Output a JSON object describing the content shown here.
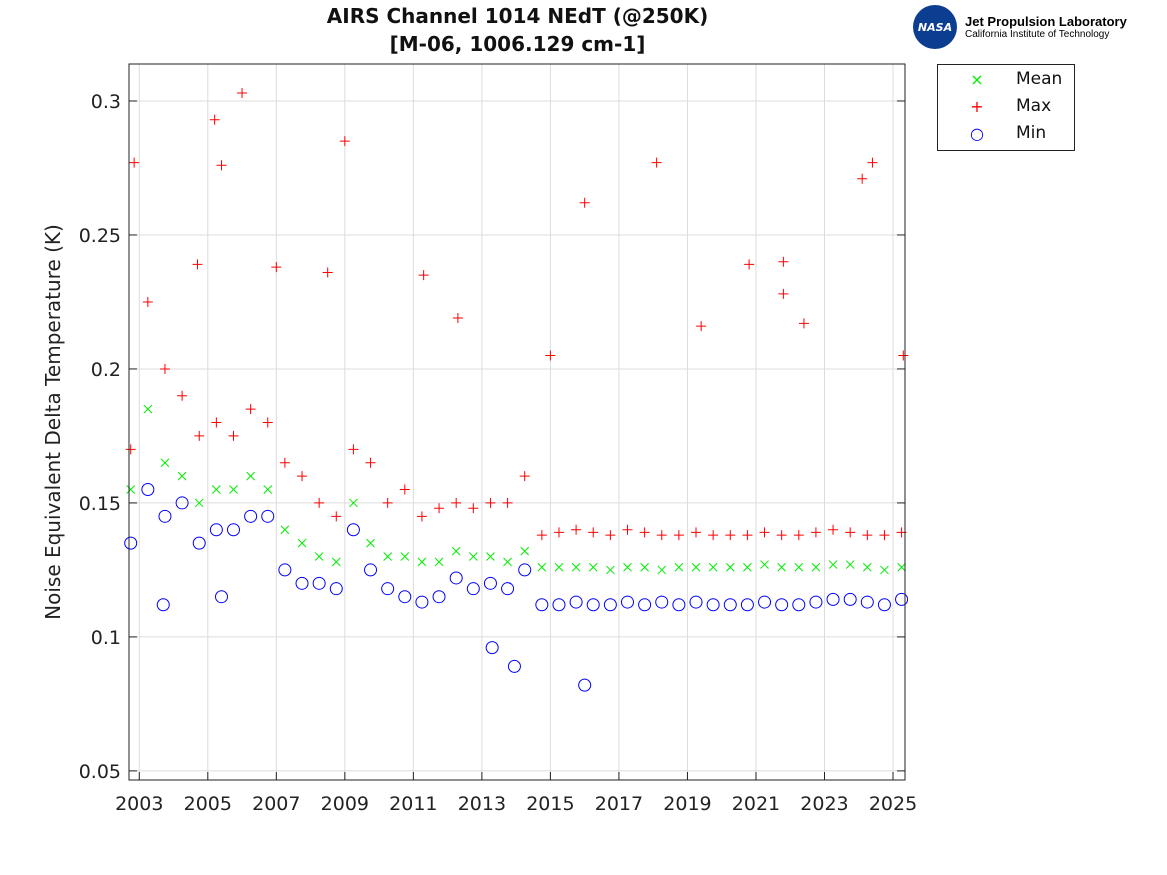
{
  "chart_data": {
    "type": "scatter",
    "title": "AIRS Channel 1014 NEdT (@250K)",
    "subtitle": "[M-06, 1006.129 cm-1]",
    "xlabel": "",
    "ylabel": "Noise Equivalent Delta Temperature (K)",
    "xlim": [
      2002.7,
      2025.35
    ],
    "ylim": [
      0.0466,
      0.3138
    ],
    "xticks": [
      2003,
      2005,
      2007,
      2009,
      2011,
      2013,
      2015,
      2017,
      2019,
      2021,
      2023,
      2025
    ],
    "yticks": [
      0.05,
      0.1,
      0.15,
      0.2,
      0.25,
      0.3
    ],
    "ytick_labels": [
      "0.05",
      "0.1",
      "0.15",
      "0.2",
      "0.25",
      "0.3"
    ],
    "grid": true,
    "legend_placement": "outside-top-right",
    "x": [
      2002.75,
      2003.25,
      2003.75,
      2004.25,
      2004.75,
      2005.25,
      2005.75,
      2006.25,
      2006.75,
      2007.25,
      2007.75,
      2008.25,
      2008.75,
      2009.25,
      2009.75,
      2010.25,
      2010.75,
      2011.25,
      2011.75,
      2012.25,
      2012.75,
      2013.25,
      2013.75,
      2014.25,
      2014.75,
      2015.25,
      2015.75,
      2016.25,
      2016.75,
      2017.25,
      2017.75,
      2018.25,
      2018.75,
      2019.25,
      2019.75,
      2020.25,
      2020.75,
      2021.25,
      2021.75,
      2022.25,
      2022.75,
      2023.25,
      2023.75,
      2024.25,
      2024.75,
      2025.25
    ],
    "series": [
      {
        "name": "Mean",
        "color": "#00ee00",
        "marker": "x",
        "values": [
          0.155,
          0.185,
          0.165,
          0.16,
          0.15,
          0.155,
          0.155,
          0.16,
          0.155,
          0.14,
          0.135,
          0.13,
          0.128,
          0.15,
          0.135,
          0.13,
          0.13,
          0.128,
          0.128,
          0.132,
          0.13,
          0.13,
          0.128,
          0.132,
          0.126,
          0.126,
          0.126,
          0.126,
          0.125,
          0.126,
          0.126,
          0.125,
          0.126,
          0.126,
          0.126,
          0.126,
          0.126,
          0.127,
          0.126,
          0.126,
          0.126,
          0.127,
          0.127,
          0.126,
          0.125,
          0.126
        ]
      },
      {
        "name": "Max",
        "color": "#ff0000",
        "marker": "+",
        "values": [
          0.17,
          0.225,
          0.2,
          0.19,
          0.175,
          0.18,
          0.175,
          0.185,
          0.18,
          0.165,
          0.16,
          0.15,
          0.145,
          0.17,
          0.165,
          0.15,
          0.155,
          0.145,
          0.148,
          0.15,
          0.148,
          0.15,
          0.15,
          0.16,
          0.138,
          0.139,
          0.14,
          0.139,
          0.138,
          0.14,
          0.139,
          0.138,
          0.138,
          0.139,
          0.138,
          0.138,
          0.138,
          0.139,
          0.138,
          0.138,
          0.139,
          0.14,
          0.139,
          0.138,
          0.138,
          0.139
        ],
        "outliers": [
          [
            2002.85,
            0.277
          ],
          [
            2004.7,
            0.239
          ],
          [
            2005.2,
            0.293
          ],
          [
            2005.4,
            0.276
          ],
          [
            2006.0,
            0.303
          ],
          [
            2007.0,
            0.238
          ],
          [
            2008.5,
            0.236
          ],
          [
            2009.0,
            0.285
          ],
          [
            2011.3,
            0.235
          ],
          [
            2012.3,
            0.219
          ],
          [
            2015.0,
            0.205
          ],
          [
            2016.0,
            0.262
          ],
          [
            2018.1,
            0.277
          ],
          [
            2019.4,
            0.216
          ],
          [
            2020.8,
            0.239
          ],
          [
            2021.8,
            0.24
          ],
          [
            2021.8,
            0.228
          ],
          [
            2022.4,
            0.217
          ],
          [
            2024.1,
            0.271
          ],
          [
            2024.4,
            0.277
          ],
          [
            2025.3,
            0.205
          ]
        ]
      },
      {
        "name": "Min",
        "color": "#0000ff",
        "marker": "o",
        "values": [
          0.135,
          0.155,
          0.145,
          0.15,
          0.135,
          0.14,
          0.14,
          0.145,
          0.145,
          0.125,
          0.12,
          0.12,
          0.118,
          0.14,
          0.125,
          0.118,
          0.115,
          0.113,
          0.115,
          0.122,
          0.118,
          0.12,
          0.118,
          0.125,
          0.112,
          0.112,
          0.113,
          0.112,
          0.112,
          0.113,
          0.112,
          0.113,
          0.112,
          0.113,
          0.112,
          0.112,
          0.112,
          0.113,
          0.112,
          0.112,
          0.113,
          0.114,
          0.114,
          0.113,
          0.112,
          0.114
        ],
        "outliers": [
          [
            2003.7,
            0.112
          ],
          [
            2005.4,
            0.115
          ],
          [
            2013.3,
            0.096
          ],
          [
            2013.95,
            0.089
          ],
          [
            2016.0,
            0.082
          ]
        ]
      }
    ]
  },
  "logo": {
    "agency": "NASA",
    "line1": "Jet Propulsion Laboratory",
    "line2": "California Institute of Technology"
  }
}
